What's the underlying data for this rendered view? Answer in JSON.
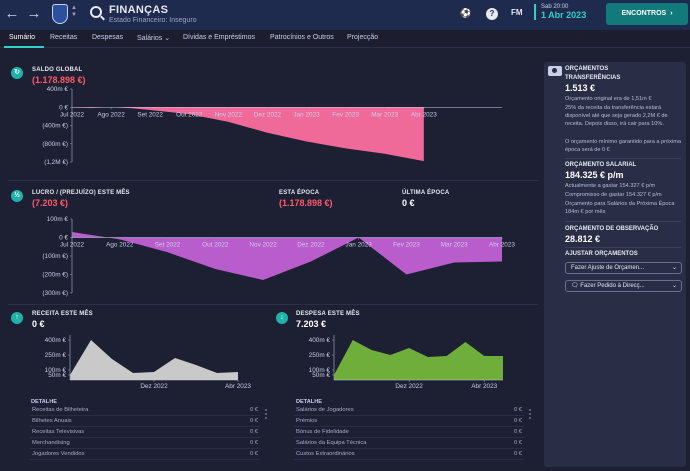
{
  "header": {
    "title": "FINANÇAS",
    "subtitle": "Estado Financeiro: Inseguro",
    "fm_logo": "FM",
    "time": "Sab 20:00",
    "date": "1 Abr 2023",
    "continue_label": "ENCONTROS",
    "icons": [
      "back-arrow-icon",
      "forward-arrow-icon",
      "club-crest",
      "search-icon",
      "ball-icon",
      "help-icon",
      "fm-logo"
    ]
  },
  "tabs": [
    {
      "label": "Sumário",
      "active": true
    },
    {
      "label": "Receitas"
    },
    {
      "label": "Despesas"
    },
    {
      "label": "Salários",
      "has_dropdown": true
    },
    {
      "label": "Dívidas e Empréstimos"
    },
    {
      "label": "Patrocínios e Outros"
    },
    {
      "label": "Projecção"
    }
  ],
  "balance": {
    "label": "SALDO GLOBAL",
    "value": "(1.178.898 €)"
  },
  "profit": {
    "label": "LUCRO / (PREJUÍZO) ESTE MÊS",
    "value": "(7.203 €)",
    "season_label": "ESTA ÉPOCA",
    "season_value": "(1.178.898 €)",
    "last_season_label": "ÚLTIMA ÉPOCA",
    "last_season_value": "0 €"
  },
  "income": {
    "label": "RECEITA ESTE MÊS",
    "value": "0 €",
    "detail_title": "DETALHE",
    "rows": [
      {
        "name": "Receitas de Bilheteira",
        "amount": "0 €"
      },
      {
        "name": "Bilhetes Anuais",
        "amount": "0 €"
      },
      {
        "name": "Receitas Televisivas",
        "amount": "0 €"
      },
      {
        "name": "Merchandising",
        "amount": "0 €"
      },
      {
        "name": "Jogadores Vendidos",
        "amount": "0 €"
      }
    ]
  },
  "expenses": {
    "label": "DESPESA ESTE MÊS",
    "value": "7.203 €",
    "detail_title": "DETALHE",
    "rows": [
      {
        "name": "Salários de Jogadores",
        "amount": "0 €"
      },
      {
        "name": "Prémios",
        "amount": "0 €"
      },
      {
        "name": "Bónus de Fidelidade",
        "amount": "0 €"
      },
      {
        "name": "Salários da Equipa Técnica",
        "amount": "0 €"
      },
      {
        "name": "Custos Extraordinários",
        "amount": "0 €"
      }
    ]
  },
  "sidebar": {
    "title": "ORÇAMENTOS",
    "transfers_head": "TRANSFERÊNCIAS",
    "transfers_value": "1.513 €",
    "transfers_text_1": "Orçamento original era de 1,51m €",
    "transfers_text_2": "25% da receita da transferência estará disponível até que seja gerado 2,2M € de receita. Depois disso, irá cair para 10%.",
    "transfers_text_3": "O orçamento mínimo garantido para a próxima época será de 0 €",
    "wage_head": "ORÇAMENTO SALARIAL",
    "wage_value": "184.325 € p/m",
    "wage_text_1": "Actualmente a gastar 154.327 € p/m",
    "wage_text_2": "Compromisso de gastar 154.327 € p/m",
    "wage_text_3": "Orçamento para Salários da Próxima Época 184m € por mês",
    "scouting_head": "ORÇAMENTO DE OBSERVAÇÃO",
    "scouting_value": "28.812 €",
    "adjust_head": "AJUSTAR ORÇAMENTOS",
    "adjust_btn_label": "Fazer Ajuste de Orçamen...",
    "request_btn_label": "Fazer Pedido à Direcç..."
  },
  "chart_data": [
    {
      "type": "area",
      "name": "balance",
      "categories": [
        "Jul 2022",
        "Ago 2022",
        "Set 2022",
        "Out 2022",
        "Nov 2022",
        "Dez 2022",
        "Jan 2023",
        "Fev 2023",
        "Mar 2023",
        "Abr 2023"
      ],
      "y_ticks": [
        "400m €",
        "0 €",
        "(400m €)",
        "(800m €)",
        "(1,2M €)"
      ],
      "y_tick_values": [
        400,
        0,
        -400,
        -800,
        -1200
      ],
      "x": [
        0,
        0.5,
        1,
        1.5,
        2,
        3,
        4,
        5,
        6,
        7,
        8,
        9
      ],
      "values": [
        -5,
        -15,
        0,
        -20,
        -60,
        -150,
        -320,
        -560,
        -750,
        -900,
        -1020,
        -1180
      ],
      "ylim": [
        -1200,
        400
      ],
      "color": "#f06a99"
    },
    {
      "type": "area",
      "name": "profit",
      "categories": [
        "Jul 2022",
        "Ago 2022",
        "Set 2022",
        "Out 2022",
        "Nov 2022",
        "Dez 2022",
        "Jan 2023",
        "Fev 2023",
        "Mar 2023",
        "Abr 2023"
      ],
      "y_ticks": [
        "100m €",
        "0 €",
        "(100m €)",
        "(200m €)",
        "(300m €)"
      ],
      "y_tick_values": [
        100,
        0,
        -100,
        -200,
        -300
      ],
      "x": [
        0,
        1,
        2,
        3,
        4,
        5,
        6,
        7,
        8,
        9
      ],
      "values": [
        30,
        -10,
        -80,
        -170,
        -230,
        -130,
        0,
        -200,
        -135,
        -130
      ],
      "ylim": [
        -300,
        100
      ],
      "color": "#b95ccc"
    },
    {
      "type": "area",
      "name": "income",
      "categories": [
        "Dez 2022",
        "Abr 2023"
      ],
      "category_x": [
        4,
        8
      ],
      "y_ticks": [
        "400m €",
        "250m €",
        "100m €",
        "50m €"
      ],
      "y_tick_values": [
        400,
        250,
        100,
        50
      ],
      "x": [
        0,
        1,
        2,
        3,
        4,
        5,
        6,
        7,
        8
      ],
      "values": [
        50,
        400,
        210,
        70,
        80,
        220,
        150,
        70,
        80
      ],
      "ylim": [
        0,
        450
      ],
      "color": "#c9c9c9"
    },
    {
      "type": "area",
      "name": "expenses",
      "categories": [
        "Dez 2022",
        "Abr 2023"
      ],
      "category_x": [
        4,
        8
      ],
      "y_ticks": [
        "400m €",
        "250m €",
        "100m €",
        "50m €"
      ],
      "y_tick_values": [
        400,
        250,
        100,
        50
      ],
      "x": [
        0,
        1,
        2,
        3,
        4,
        5,
        6,
        7,
        8,
        9
      ],
      "values": [
        50,
        400,
        300,
        250,
        320,
        230,
        240,
        380,
        240,
        240
      ],
      "ylim": [
        0,
        450
      ],
      "color": "#6fae3a"
    }
  ]
}
